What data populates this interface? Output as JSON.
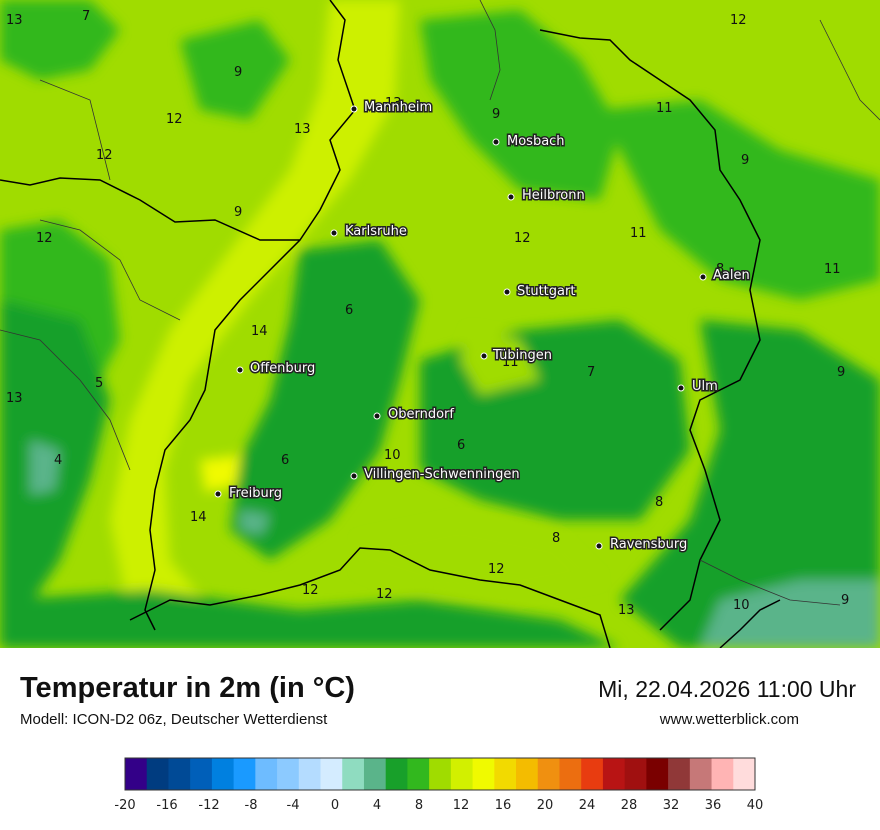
{
  "header": {
    "title": "Temperatur in 2m (in °C)",
    "model": "Modell: ICON-D2 06z, Deutscher Wetterdienst",
    "datetime": "Mi, 22.04.2026 11:00 Uhr",
    "website": "www.wetterblick.com"
  },
  "cities": [
    {
      "name": "Mannheim"
    },
    {
      "name": "Mosbach"
    },
    {
      "name": "Heilbronn"
    },
    {
      "name": "Karlsruhe"
    },
    {
      "name": "Aalen"
    },
    {
      "name": "Stuttgart"
    },
    {
      "name": "Tübingen"
    },
    {
      "name": "Offenburg"
    },
    {
      "name": "Ulm"
    },
    {
      "name": "Oberndorf"
    },
    {
      "name": "Villingen-Schwenningen"
    },
    {
      "name": "Freiburg"
    },
    {
      "name": "Ravensburg"
    }
  ],
  "isotherm_labels": [
    "13",
    "7",
    "12",
    "9",
    "12",
    "13",
    "13",
    "9",
    "11",
    "9",
    "12",
    "9",
    "12",
    "12",
    "11",
    "8",
    "11",
    "6",
    "14",
    "11",
    "7",
    "9",
    "5",
    "13",
    "4",
    "10",
    "6",
    "6",
    "8",
    "14",
    "8",
    "12",
    "12",
    "12",
    "13",
    "10",
    "9"
  ],
  "legend": {
    "colors": [
      "#330088",
      "#003c80",
      "#004a96",
      "#005fb9",
      "#0080e0",
      "#1a9aff",
      "#6ebcff",
      "#8ccaff",
      "#b4dcff",
      "#d4ecff",
      "#8fdcc0",
      "#5ab48a",
      "#18a02a",
      "#32b81e",
      "#a0dc00",
      "#d2f000",
      "#f0fa00",
      "#f2da00",
      "#f4bc00",
      "#f09010",
      "#ec6e10",
      "#e83c10",
      "#b81414",
      "#a01010",
      "#7a0000",
      "#903838",
      "#c67878",
      "#ffb4b4",
      "#ffdcdc"
    ],
    "tick_labels": [
      "-20",
      "-16",
      "-12",
      "-8",
      "-4",
      "0",
      "4",
      "8",
      "12",
      "16",
      "20",
      "24",
      "28",
      "32",
      "36",
      "40"
    ]
  }
}
